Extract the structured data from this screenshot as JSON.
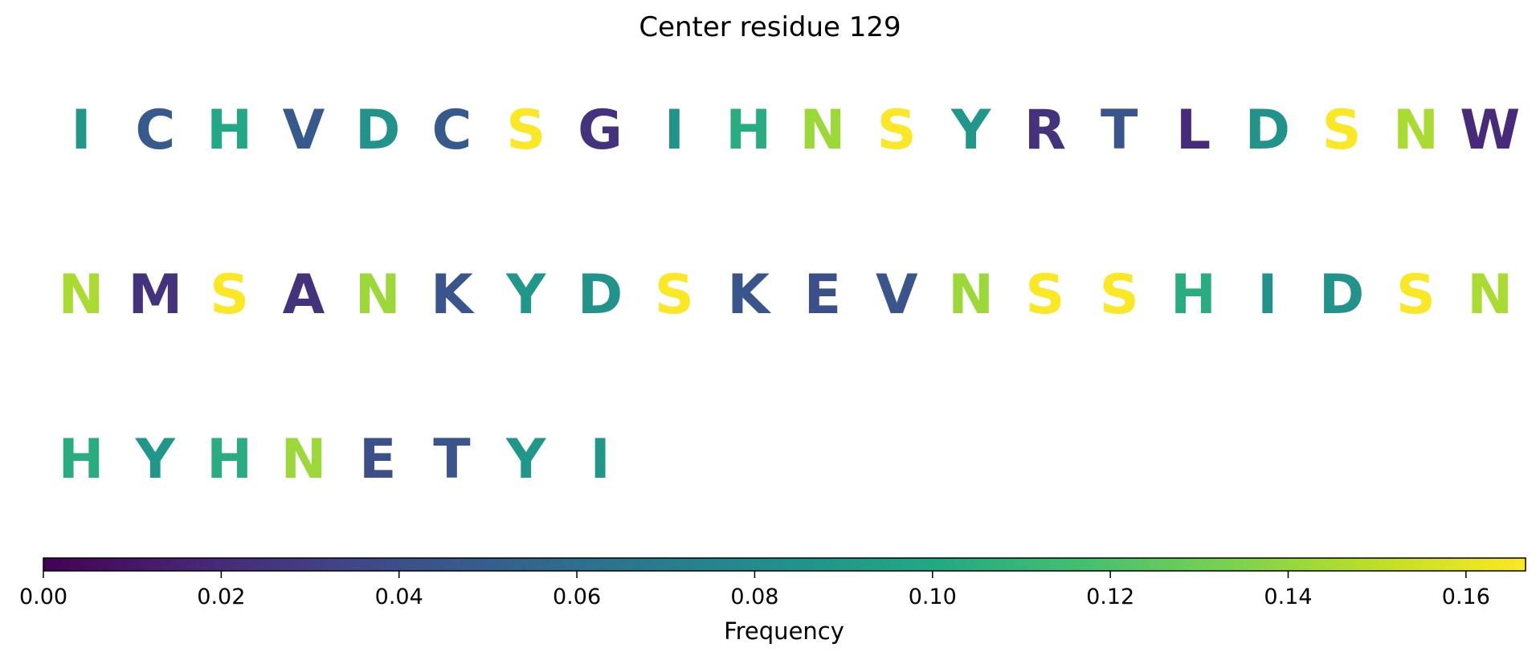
{
  "chart_data": {
    "type": "heatmap",
    "title": "Center residue 129",
    "colormap": "viridis",
    "rows": [
      {
        "letters": [
          "I",
          "C",
          "H",
          "V",
          "D",
          "C",
          "S",
          "G",
          "I",
          "H",
          "N",
          "S",
          "Y",
          "R",
          "T",
          "L",
          "D",
          "S",
          "N",
          "W"
        ],
        "values": [
          0.088,
          0.047,
          0.1,
          0.047,
          0.085,
          0.047,
          0.166,
          0.024,
          0.085,
          0.103,
          0.142,
          0.166,
          0.088,
          0.024,
          0.044,
          0.02,
          0.085,
          0.166,
          0.145,
          0.02
        ]
      },
      {
        "letters": [
          "N",
          "M",
          "S",
          "A",
          "N",
          "K",
          "Y",
          "D",
          "S",
          "K",
          "E",
          "V",
          "N",
          "S",
          "S",
          "H",
          "I",
          "D",
          "S",
          "N"
        ],
        "values": [
          0.145,
          0.024,
          0.166,
          0.024,
          0.142,
          0.044,
          0.088,
          0.085,
          0.166,
          0.044,
          0.041,
          0.044,
          0.142,
          0.166,
          0.166,
          0.103,
          0.085,
          0.085,
          0.166,
          0.145
        ]
      },
      {
        "letters": [
          "H",
          "Y",
          "H",
          "N",
          "E",
          "T",
          "Y",
          "I"
        ],
        "values": [
          0.103,
          0.088,
          0.103,
          0.142,
          0.041,
          0.044,
          0.088,
          0.088
        ]
      }
    ],
    "colorbar": {
      "label": "Frequency",
      "range": [
        0,
        0.1667
      ],
      "ticks": [
        0.0,
        0.02,
        0.04,
        0.06,
        0.08,
        0.1,
        0.12,
        0.14,
        0.16
      ],
      "tick_labels": [
        "0.00",
        "0.02",
        "0.04",
        "0.06",
        "0.08",
        "0.10",
        "0.12",
        "0.14",
        "0.16"
      ]
    }
  }
}
